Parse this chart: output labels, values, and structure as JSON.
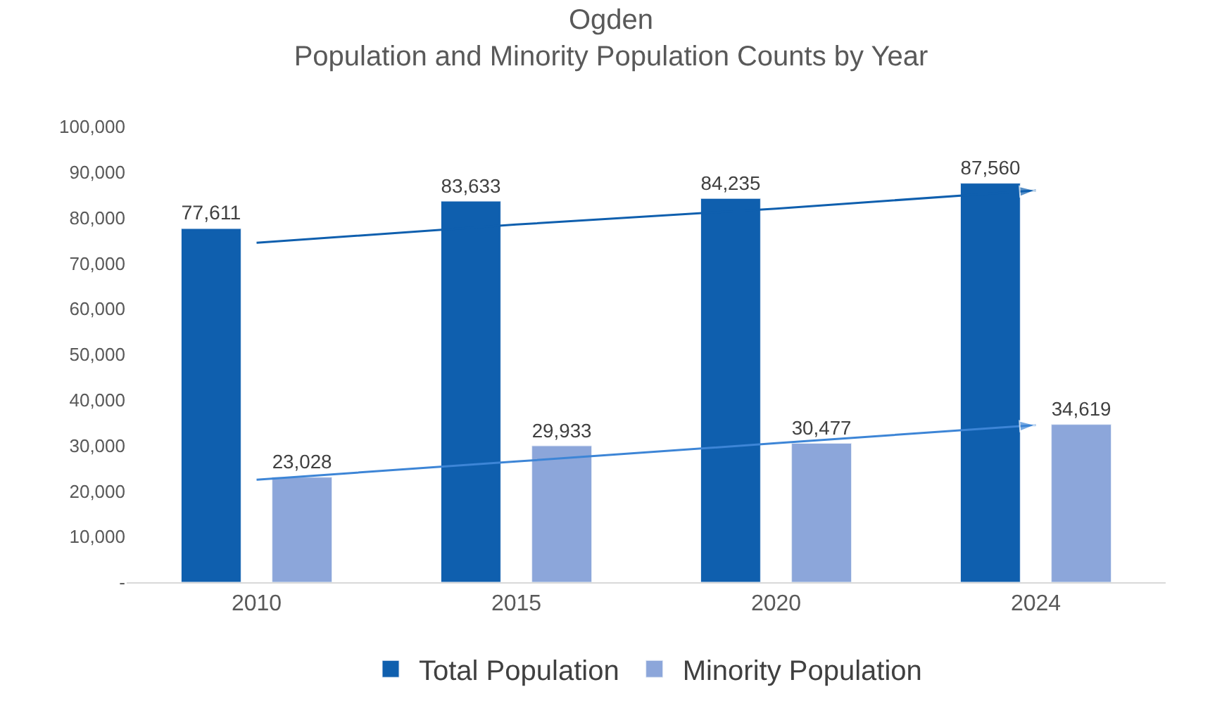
{
  "chart_data": {
    "type": "bar",
    "title": "Ogden\nPopulation and Minority Population Counts by Year",
    "categories": [
      "2010",
      "2015",
      "2020",
      "2024"
    ],
    "series": [
      {
        "name": "Total Population",
        "color": "#0f5fae",
        "values": [
          77611,
          83633,
          84235,
          87560
        ],
        "value_labels": [
          "77,611",
          "83,633",
          "84,235",
          "87,560"
        ]
      },
      {
        "name": "Minority Population",
        "color": "#8ca6da",
        "values": [
          23028,
          29933,
          30477,
          34619
        ],
        "value_labels": [
          "23,028",
          "29,933",
          "30,477",
          "34,619"
        ]
      },
      {
        "type": "line",
        "color": "#0f5fae",
        "values": [
          74500,
          78500,
          82000,
          86000
        ]
      },
      {
        "type": "line",
        "color": "#3d85d6",
        "values": [
          22500,
          26500,
          30500,
          34500
        ]
      }
    ],
    "ylim": [
      0,
      100000
    ],
    "yticks": [
      {
        "value": 0,
        "label": "-"
      },
      {
        "value": 10000,
        "label": "10,000"
      },
      {
        "value": 20000,
        "label": "20,000"
      },
      {
        "value": 30000,
        "label": "30,000"
      },
      {
        "value": 40000,
        "label": "40,000"
      },
      {
        "value": 50000,
        "label": "50,000"
      },
      {
        "value": 60000,
        "label": "60,000"
      },
      {
        "value": 70000,
        "label": "70,000"
      },
      {
        "value": 80000,
        "label": "80,000"
      },
      {
        "value": 90000,
        "label": "90,000"
      },
      {
        "value": 100000,
        "label": "100,000"
      }
    ],
    "legend": "bottom"
  }
}
